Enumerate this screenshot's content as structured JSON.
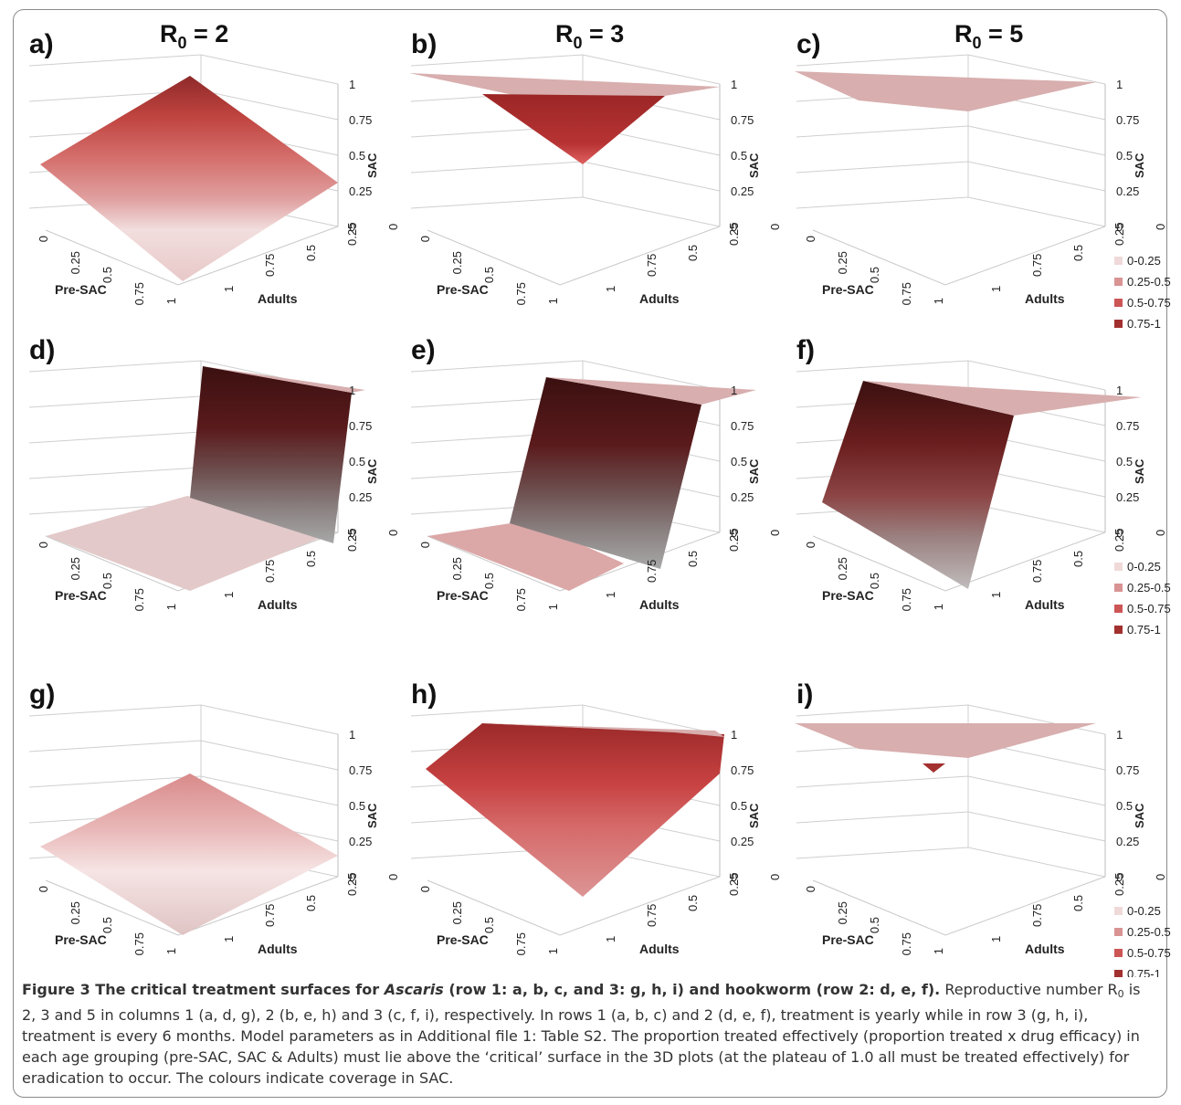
{
  "columns": [
    {
      "r_base": "R",
      "r_sub": "0",
      "r_eq": " = 2"
    },
    {
      "r_base": "R",
      "r_sub": "0",
      "r_eq": " = 3"
    },
    {
      "r_base": "R",
      "r_sub": "0",
      "r_eq": " = 5"
    }
  ],
  "axes": {
    "presac_label": "Pre-SAC",
    "adults_label": "Adults",
    "sac_label": "SAC",
    "presac_ticks": [
      "0",
      "0.25",
      "0.5",
      "0.75",
      "1"
    ],
    "adults_ticks": [
      "1",
      "0.75",
      "0.5",
      "0.25",
      "0"
    ],
    "sac_ticks": [
      "0",
      "0.25",
      "0.5",
      "0.75",
      "1"
    ]
  },
  "legend": {
    "entries": [
      {
        "label": "0.75-1",
        "color": "#a2302f"
      },
      {
        "label": "0.5-0.75",
        "color": "#cc5555"
      },
      {
        "label": "0.25-0.5",
        "color": "#d99393"
      },
      {
        "label": "0-0.25",
        "color": "#f0d9d9"
      }
    ]
  },
  "colors": {
    "ascaris_high": "#a2302f",
    "plateau": "#d8aeae",
    "hookworm_dark": "#4a1516",
    "grey": "#9b9b9b"
  },
  "panels": [
    {
      "letter": "a)",
      "surface": "Ascaris, yearly, R0 = 2 — pyramid rising to 1 at corner"
    },
    {
      "letter": "b)",
      "surface": "Ascaris, yearly, R0 = 3 — inverted pyramid below plateau of 1"
    },
    {
      "letter": "c)",
      "surface": "Ascaris, yearly, R0 = 5 — flat plateau at 1"
    },
    {
      "letter": "d)",
      "surface": "Hookworm, yearly, R0 = 2 — steep step to plateau"
    },
    {
      "letter": "e)",
      "surface": "Hookworm, yearly, R0 = 3 — steep step to plateau"
    },
    {
      "letter": "f)",
      "surface": "Hookworm, yearly, R0 = 5 — steep step to plateau"
    },
    {
      "letter": "g)",
      "surface": "Ascaris, 6-monthly, R0 = 2 — low pyramid"
    },
    {
      "letter": "h)",
      "surface": "Ascaris, 6-monthly, R0 = 3 — dome up to plateau"
    },
    {
      "letter": "i)",
      "surface": "Ascaris, 6-monthly, R0 = 5 — flat plateau with small dip"
    }
  ],
  "caption": {
    "fig": "Figure 3 The critical treatment surfaces for ",
    "ascaris": "Ascaris",
    "lead_rest": " (row 1: a, b, c, and 3: g, h, i) and hookworm (row 2: d, e, f).",
    "p1": " Reproductive number R",
    "p1_sub": "0",
    "p2": " is 2, 3 and 5 in columns 1 (a, d, g), 2 (b, e, h) and 3 (c, f, i), respectively. In rows 1 (a, b, c) and 2 (d, e, f), treatment is yearly while in row 3 (g, h, i), treatment is every 6 months. Model parameters as in Additional file 1: Table S2. The proportion treated effectively (proportion treated x drug efficacy) in each age grouping (pre-SAC, SAC & Adults) must lie above the ‘critical’ surface in the 3D plots (at the plateau of 1.0 all must be treated effectively) for eradication to occur. The colours indicate coverage in SAC."
  }
}
